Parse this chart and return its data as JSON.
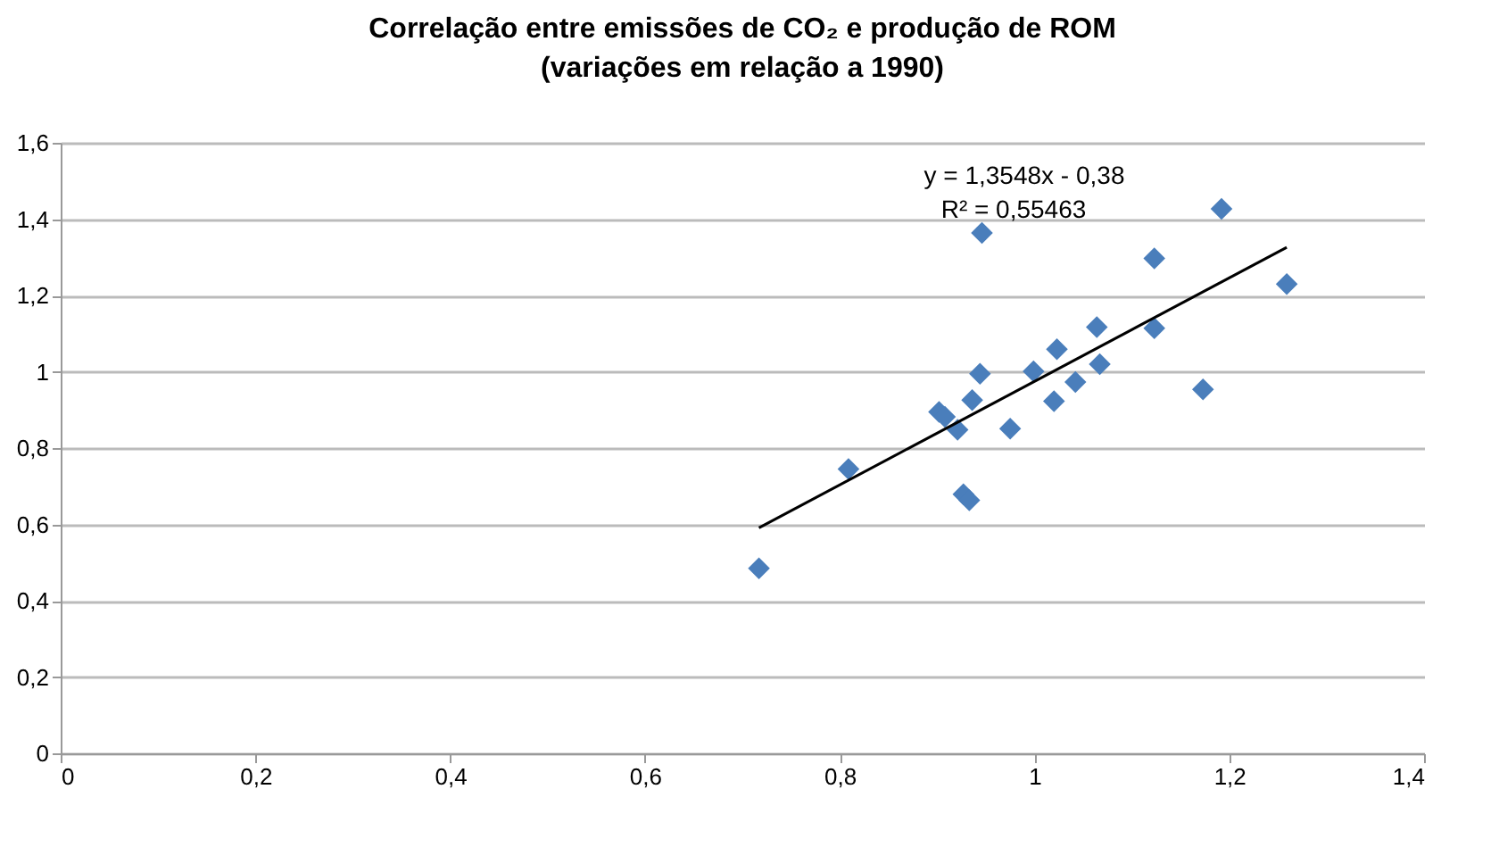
{
  "chart_data": {
    "type": "scatter",
    "title": [
      "Correlação entre emissões de CO₂ e produção de ROM",
      "(variações em relação a 1990)"
    ],
    "annotations": [
      "y = 1,3548x - 0,38",
      "R² = 0,55463"
    ],
    "series": [
      {
        "color": "#4a7ebb",
        "marker": "diamond",
        "x": [
          0.717,
          0.809,
          0.902,
          0.908,
          0.921,
          0.936,
          0.944,
          0.927,
          0.933,
          0.946,
          0.975,
          0.999,
          1.023,
          1.02,
          1.042,
          1.064,
          1.067,
          1.123,
          1.123,
          1.173,
          1.192,
          1.259
        ],
        "values": [
          0.485,
          0.745,
          0.895,
          0.882,
          0.848,
          0.926,
          0.995,
          0.679,
          0.663,
          1.364,
          0.851,
          1.001,
          1.059,
          0.923,
          0.973,
          1.117,
          1.02,
          1.297,
          1.114,
          0.954,
          1.427,
          1.23
        ]
      },
      {
        "type": "line",
        "color": "#000000",
        "marker": "none",
        "x": [
          0.717,
          1.259
        ],
        "values": [
          0.591,
          1.326
        ]
      }
    ],
    "xlim": [
      0,
      1.4
    ],
    "xticks": [
      {
        "value": 0,
        "label": "0"
      },
      {
        "value": 0.2,
        "label": "0,2"
      },
      {
        "value": 0.4,
        "label": "0,4"
      },
      {
        "value": 0.6,
        "label": "0,6"
      },
      {
        "value": 0.8,
        "label": "0,8"
      },
      {
        "value": 1,
        "label": "1"
      },
      {
        "value": 1.2,
        "label": "1,2"
      },
      {
        "value": 1.4,
        "label": "1,4"
      }
    ],
    "ylim": [
      0,
      1.6
    ],
    "yticks": [
      {
        "value": 0,
        "label": "0"
      },
      {
        "value": 0.2,
        "label": "0,2"
      },
      {
        "value": 0.4,
        "label": "0,4"
      },
      {
        "value": 0.6,
        "label": "0,6"
      },
      {
        "value": 0.8,
        "label": "0,8"
      },
      {
        "value": 1,
        "label": "1"
      },
      {
        "value": 1.2,
        "label": "1,2"
      },
      {
        "value": 1.4,
        "label": "1,4"
      },
      {
        "value": 1.6,
        "label": "1,6"
      }
    ],
    "grid": "y"
  }
}
